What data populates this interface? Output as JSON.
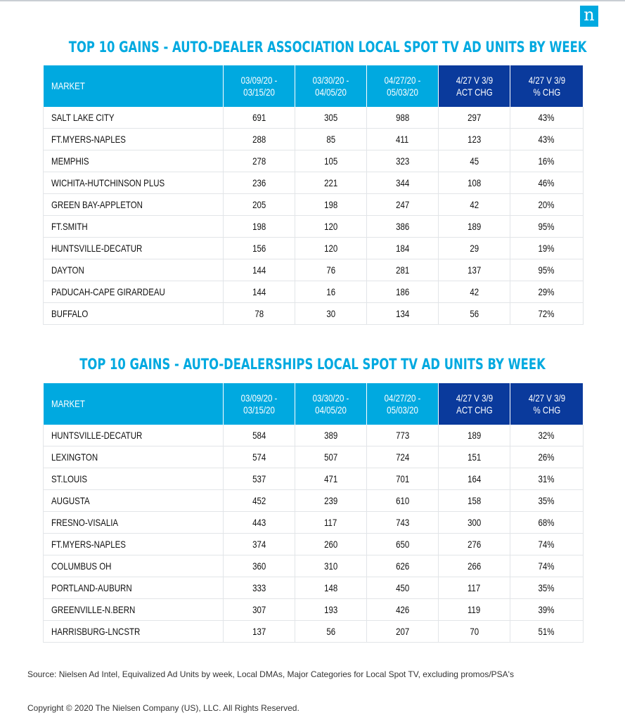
{
  "brand": {
    "logo_letter": "n",
    "accent": "#00a9e0",
    "dark": "#0a3a9c"
  },
  "table1": {
    "title": "TOP 10 GAINS - AUTO-DEALER ASSOCIATION LOCAL SPOT TV AD UNITS BY WEEK",
    "headers": [
      "MARKET",
      "03/09/20 -\n03/15/20",
      "03/30/20 -\n04/05/20",
      "04/27/20 -\n05/03/20",
      "4/27 V 3/9\nACT CHG",
      "4/27 V 3/9\n% CHG"
    ],
    "rows": [
      [
        "SALT LAKE CITY",
        "691",
        "305",
        "988",
        "297",
        "43%"
      ],
      [
        "FT.MYERS-NAPLES",
        "288",
        "85",
        "411",
        "123",
        "43%"
      ],
      [
        "MEMPHIS",
        "278",
        "105",
        "323",
        "45",
        "16%"
      ],
      [
        "WICHITA-HUTCHINSON PLUS",
        "236",
        "221",
        "344",
        "108",
        "46%"
      ],
      [
        "GREEN BAY-APPLETON",
        "205",
        "198",
        "247",
        "42",
        "20%"
      ],
      [
        "FT.SMITH",
        "198",
        "120",
        "386",
        "189",
        "95%"
      ],
      [
        "HUNTSVILLE-DECATUR",
        "156",
        "120",
        "184",
        "29",
        "19%"
      ],
      [
        "DAYTON",
        "144",
        "76",
        "281",
        "137",
        "95%"
      ],
      [
        "PADUCAH-CAPE GIRARDEAU",
        "144",
        "16",
        "186",
        "42",
        "29%"
      ],
      [
        "BUFFALO",
        "78",
        "30",
        "134",
        "56",
        "72%"
      ]
    ]
  },
  "table2": {
    "title": "TOP 10 GAINS - AUTO-DEALERSHIPS LOCAL SPOT TV AD UNITS BY WEEK",
    "headers": [
      "MARKET",
      "03/09/20 -\n03/15/20",
      "03/30/20 -\n04/05/20",
      "04/27/20 -\n05/03/20",
      "4/27 V 3/9\nACT CHG",
      "4/27 V 3/9\n% CHG"
    ],
    "rows": [
      [
        "HUNTSVILLE-DECATUR",
        "584",
        "389",
        "773",
        "189",
        "32%"
      ],
      [
        "LEXINGTON",
        "574",
        "507",
        "724",
        "151",
        "26%"
      ],
      [
        "ST.LOUIS",
        "537",
        "471",
        "701",
        "164",
        "31%"
      ],
      [
        "AUGUSTA",
        "452",
        "239",
        "610",
        "158",
        "35%"
      ],
      [
        "FRESNO-VISALIA",
        "443",
        "117",
        "743",
        "300",
        "68%"
      ],
      [
        "FT.MYERS-NAPLES",
        "374",
        "260",
        "650",
        "276",
        "74%"
      ],
      [
        "COLUMBUS OH",
        "360",
        "310",
        "626",
        "266",
        "74%"
      ],
      [
        "PORTLAND-AUBURN",
        "333",
        "148",
        "450",
        "117",
        "35%"
      ],
      [
        "GREENVILLE-N.BERN",
        "307",
        "193",
        "426",
        "119",
        "39%"
      ],
      [
        "HARRISBURG-LNCSTR",
        "137",
        "56",
        "207",
        "70",
        "51%"
      ]
    ]
  },
  "footer": {
    "source": "Source: Nielsen Ad Intel, Equivalized Ad Units by week, Local DMAs, Major Categories for Local Spot TV, excluding promos/PSA's",
    "copyright": "Copyright © 2020 The Nielsen Company (US), LLC. All Rights Reserved."
  }
}
